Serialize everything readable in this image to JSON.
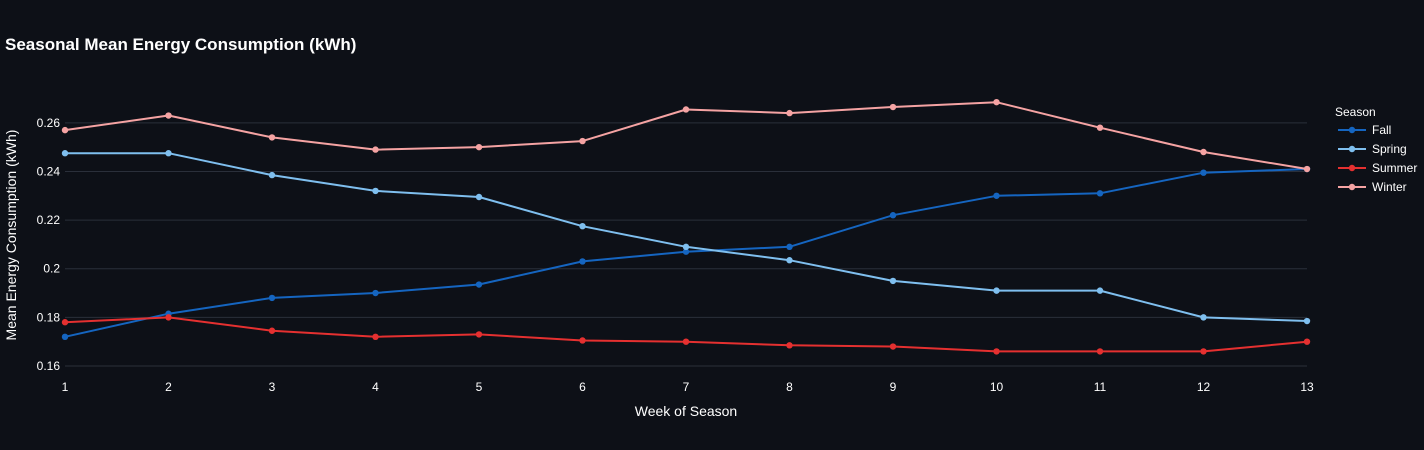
{
  "chart_data": {
    "type": "line",
    "title": "Seasonal Mean Energy Consumption (kWh)",
    "xlabel": "Week of Season",
    "ylabel": "Mean Energy Consumption (kWh)",
    "x": [
      1,
      2,
      3,
      4,
      5,
      6,
      7,
      8,
      9,
      10,
      11,
      12,
      13
    ],
    "x_tick_labels": [
      "1",
      "2",
      "3",
      "4",
      "5",
      "6",
      "7",
      "8",
      "9",
      "10",
      "11",
      "12",
      "13"
    ],
    "xlim": [
      1,
      13
    ],
    "ylim": [
      0.16,
      0.2735
    ],
    "y_ticks": [
      0.16,
      0.18,
      0.2,
      0.22,
      0.24,
      0.26
    ],
    "y_tick_labels": [
      "0.16",
      "0.18",
      "0.2",
      "0.22",
      "0.24",
      "0.26"
    ],
    "grid": true,
    "legend": {
      "title": "Season",
      "placement": "right"
    },
    "series": [
      {
        "name": "Fall",
        "color": "#1565c0",
        "values": [
          0.172,
          0.1815,
          0.188,
          0.19,
          0.1935,
          0.203,
          0.207,
          0.209,
          0.222,
          0.23,
          0.231,
          0.2395,
          0.241
        ]
      },
      {
        "name": "Spring",
        "color": "#7fbfef",
        "values": [
          0.2475,
          0.2475,
          0.2385,
          0.232,
          0.2295,
          0.2175,
          0.209,
          0.2035,
          0.195,
          0.191,
          0.191,
          0.18,
          0.1785
        ]
      },
      {
        "name": "Summer",
        "color": "#e53030",
        "values": [
          0.178,
          0.18,
          0.1745,
          0.172,
          0.173,
          0.1705,
          0.17,
          0.1685,
          0.168,
          0.166,
          0.166,
          0.166,
          0.17
        ]
      },
      {
        "name": "Winter",
        "color": "#f5a3a3",
        "values": [
          0.257,
          0.263,
          0.254,
          0.249,
          0.25,
          0.2525,
          0.2655,
          0.264,
          0.2665,
          0.2685,
          0.258,
          0.248,
          0.241
        ]
      }
    ]
  }
}
